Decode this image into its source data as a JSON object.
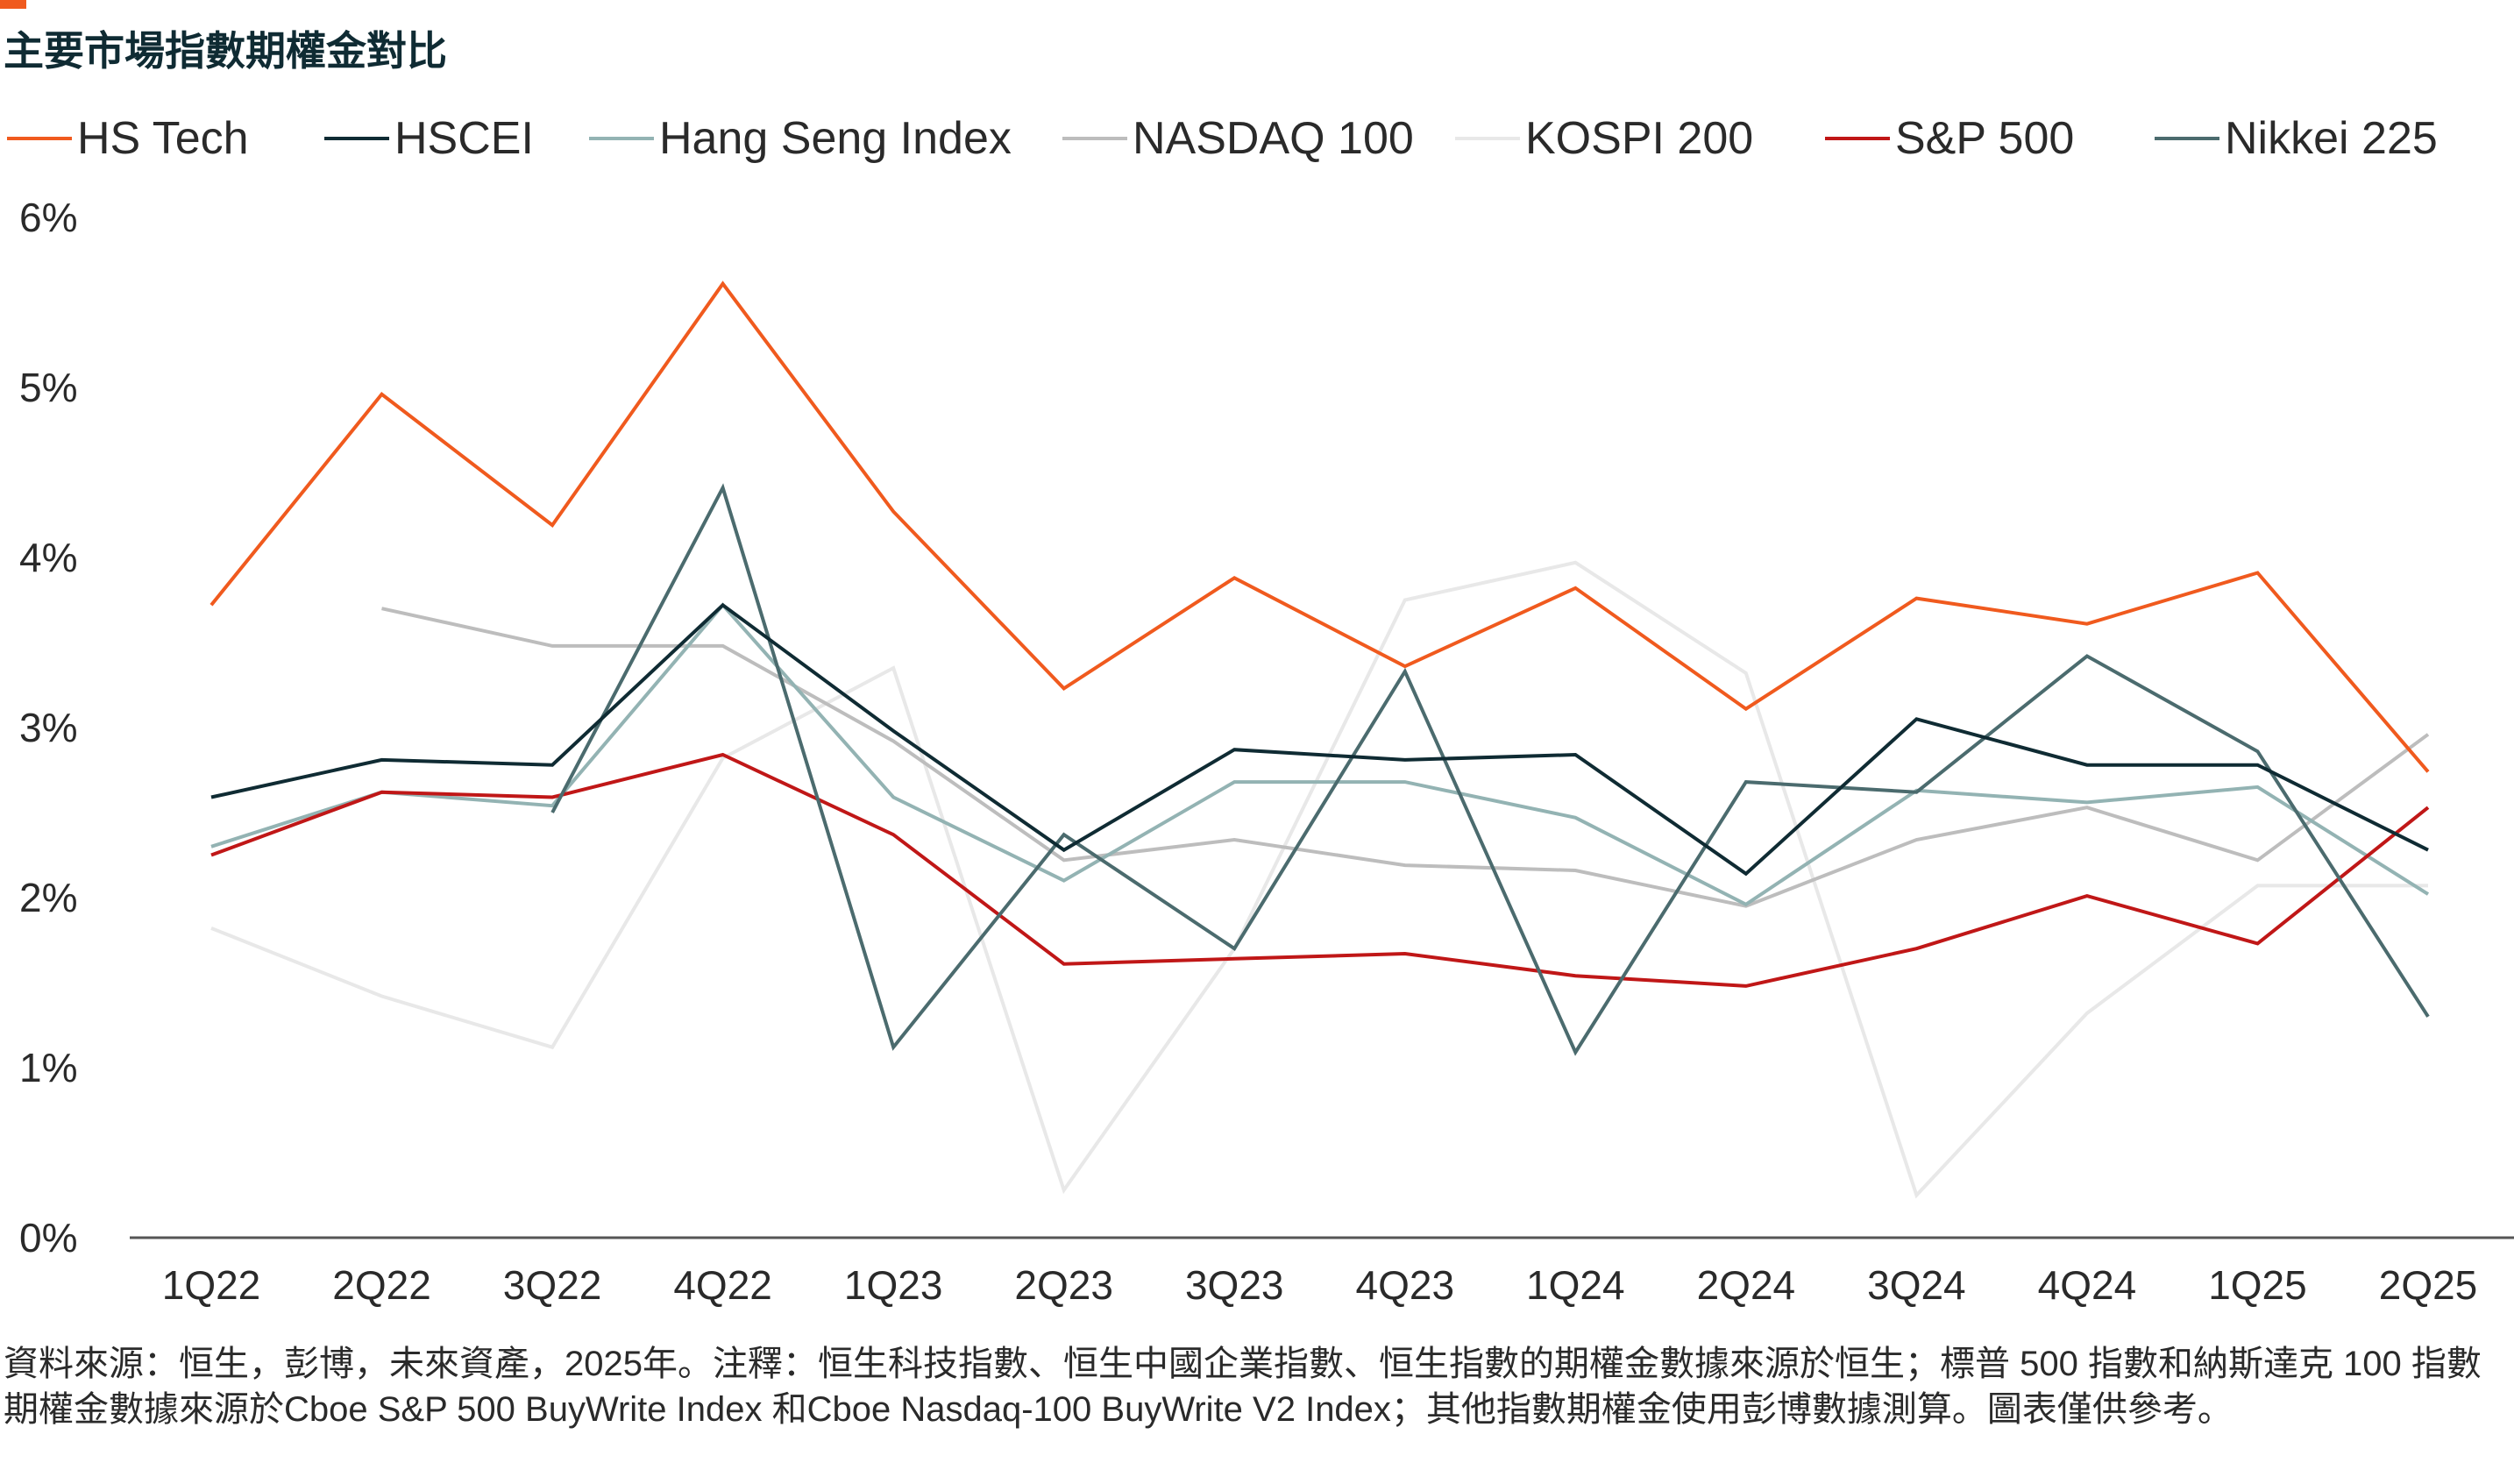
{
  "title": "主要市場指數期權金對比",
  "colors": {
    "accent": "#f05a1e",
    "axis": "#555555"
  },
  "legend": [
    {
      "label": "HS Tech",
      "color": "#f05a1e"
    },
    {
      "label": "HSCEI",
      "color": "#0f2b33"
    },
    {
      "label": "Hang Seng Index",
      "color": "#93b3b3"
    },
    {
      "label": "NASDAQ 100",
      "color": "#bdbdbd"
    },
    {
      "label": "KOSPI 200",
      "color": "#e8e8e8"
    },
    {
      "label": "S&P 500",
      "color": "#c01717"
    },
    {
      "label": "Nikkei 225",
      "color": "#4b6b6e"
    }
  ],
  "chart_data": {
    "type": "line",
    "title": "主要市場指數期權金對比",
    "xlabel": "",
    "ylabel": "",
    "ylim": [
      0,
      6
    ],
    "yticks": [
      "0%",
      "1%",
      "2%",
      "3%",
      "4%",
      "5%",
      "6%"
    ],
    "categories": [
      "1Q22",
      "2Q22",
      "3Q22",
      "4Q22",
      "1Q23",
      "2Q23",
      "3Q23",
      "4Q23",
      "1Q24",
      "2Q24",
      "3Q24",
      "4Q24",
      "1Q25",
      "2Q25"
    ],
    "grid": false,
    "legend_position": "top",
    "series": [
      {
        "name": "KOSPI 200",
        "color": "#e8e8e8",
        "values": [
          1.82,
          1.42,
          1.12,
          2.82,
          3.35,
          0.28,
          1.7,
          3.75,
          3.97,
          3.32,
          0.25,
          1.32,
          2.07,
          2.07
        ]
      },
      {
        "name": "NASDAQ 100",
        "color": "#bdbdbd",
        "values": [
          null,
          3.7,
          3.48,
          3.48,
          2.92,
          2.22,
          2.34,
          2.19,
          2.16,
          1.95,
          2.34,
          2.53,
          2.22,
          2.96
        ]
      },
      {
        "name": "Hang Seng Index",
        "color": "#93b3b3",
        "values": [
          2.3,
          2.62,
          2.54,
          3.72,
          2.59,
          2.1,
          2.68,
          2.68,
          2.47,
          1.96,
          2.63,
          2.56,
          2.65,
          2.02
        ]
      },
      {
        "name": "S&P 500",
        "color": "#c01717",
        "values": [
          2.25,
          2.62,
          2.59,
          2.84,
          2.37,
          1.61,
          1.64,
          1.67,
          1.54,
          1.48,
          1.7,
          2.01,
          1.73,
          2.53
        ]
      },
      {
        "name": "Nikkei 225",
        "color": "#4b6b6e",
        "values": [
          null,
          null,
          2.5,
          4.41,
          1.12,
          2.37,
          1.7,
          3.33,
          1.09,
          2.68,
          2.62,
          3.42,
          2.86,
          1.3
        ]
      },
      {
        "name": "HSCEI",
        "color": "#0f2b33",
        "values": [
          2.59,
          2.81,
          2.78,
          3.72,
          2.98,
          2.28,
          2.87,
          2.81,
          2.84,
          2.14,
          3.05,
          2.78,
          2.78,
          2.28
        ]
      },
      {
        "name": "HS Tech",
        "color": "#f05a1e",
        "values": [
          3.72,
          4.96,
          4.19,
          5.61,
          4.27,
          3.23,
          3.88,
          3.36,
          3.82,
          3.11,
          3.76,
          3.61,
          3.91,
          2.74
        ]
      }
    ]
  },
  "footnote": "資料來源：恒生，彭博，未來資產，2025年。注釋：恒生科技指數、恒生中國企業指數、恒生指數的期權金數據來源於恒生；標普 500 指數和納斯達克 100 指數期權金數據來源於Cboe S&P 500 BuyWrite Index 和Cboe Nasdaq-100 BuyWrite V2 Index；其他指數期權金使用彭博數據測算。圖表僅供參考。"
}
